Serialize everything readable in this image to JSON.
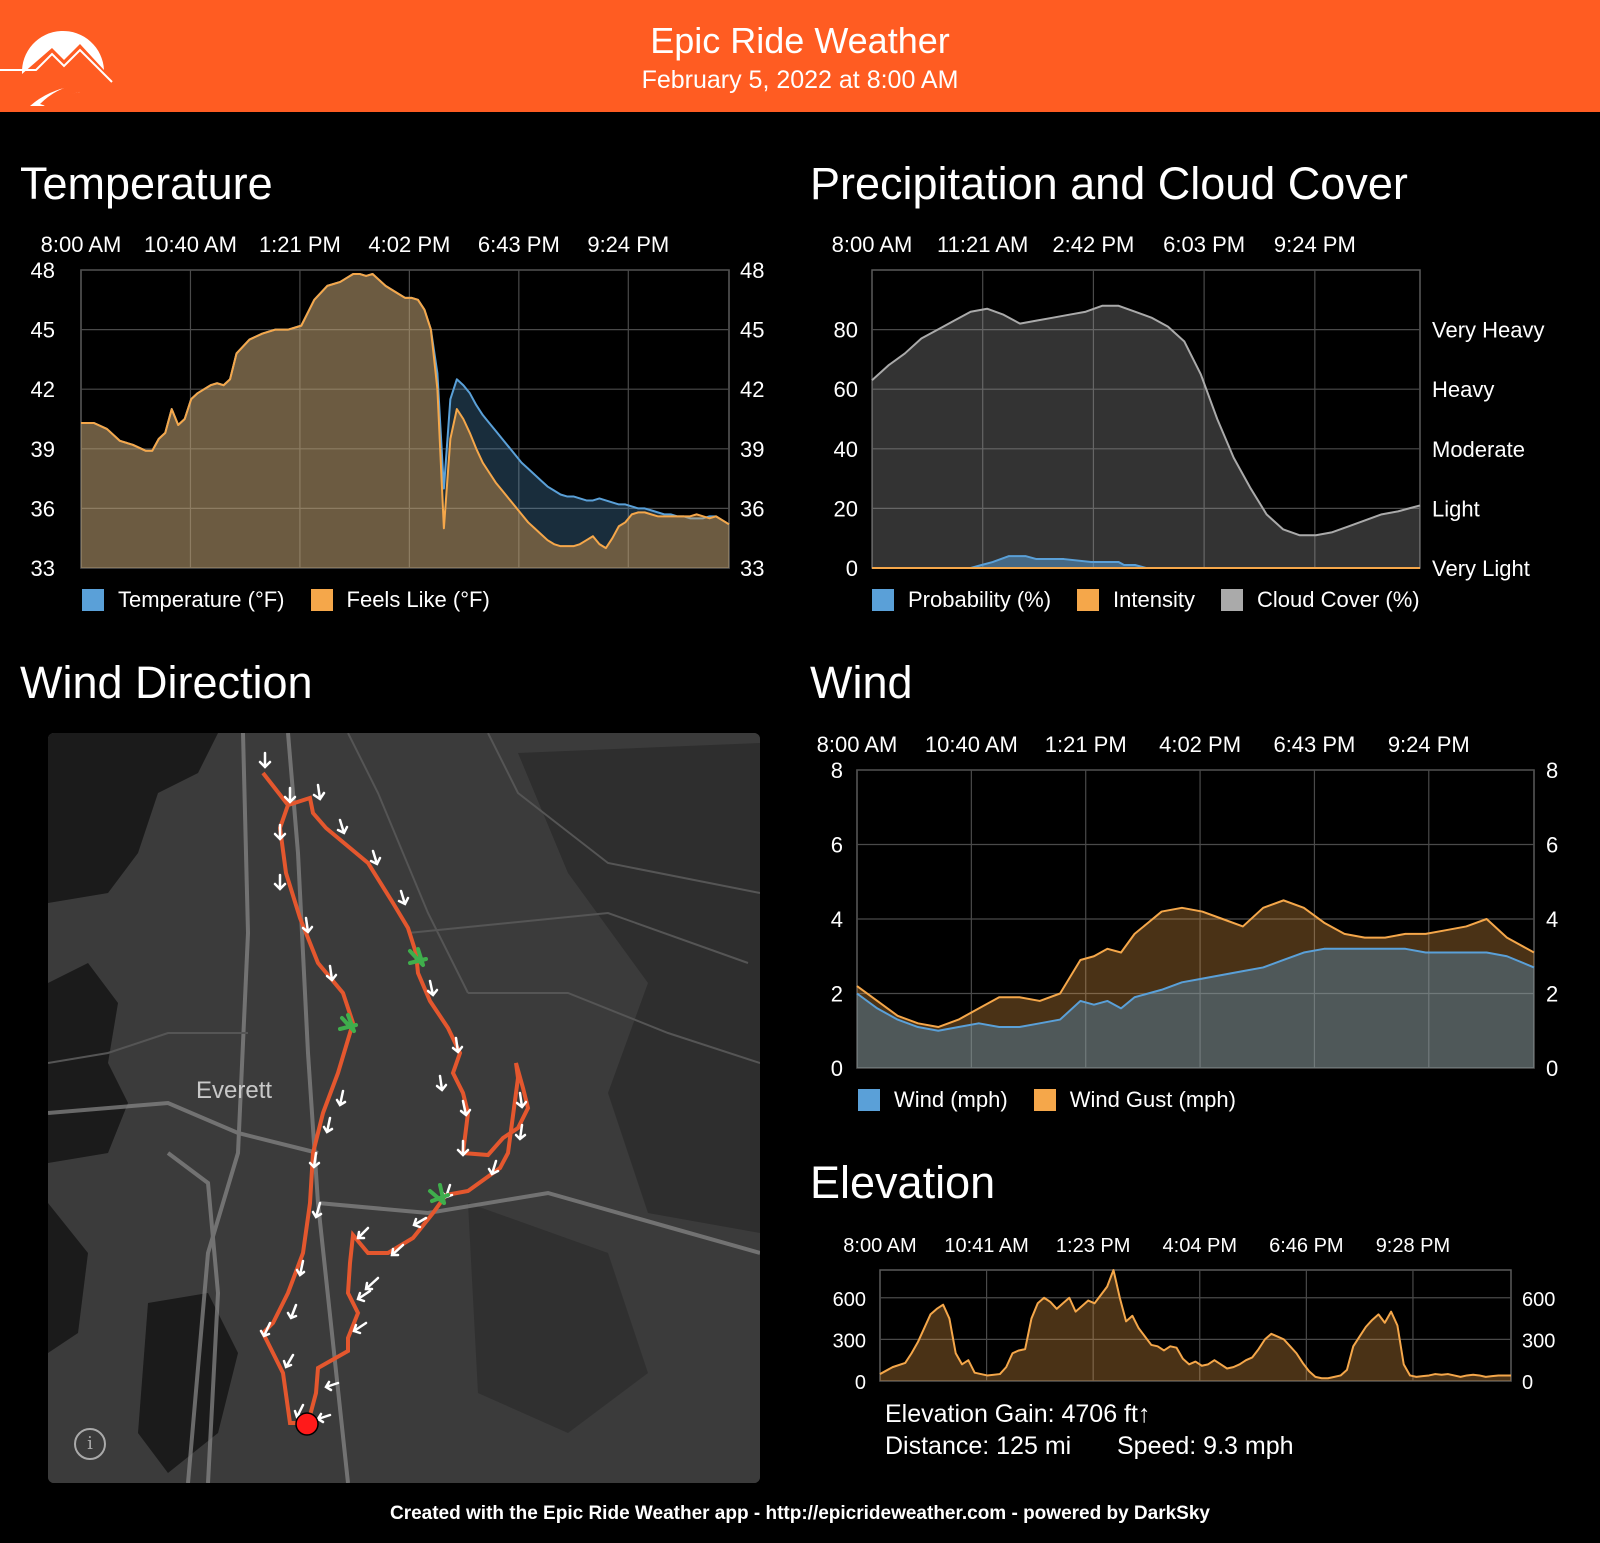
{
  "header": {
    "title": "Epic Ride Weather",
    "date": "February 5, 2022 at 8:00 AM",
    "brand_color": "#ff5c22"
  },
  "sections": {
    "temperature": "Temperature",
    "precip": "Precipitation and Cloud Cover",
    "wind_direction": "Wind Direction",
    "wind": "Wind",
    "elevation": "Elevation"
  },
  "legends": {
    "temperature": [
      {
        "label": "Temperature (°F)",
        "color": "#5aa0d8"
      },
      {
        "label": "Feels Like (°F)",
        "color": "#f5a74a"
      }
    ],
    "precip": [
      {
        "label": "Probability (%)",
        "color": "#5aa0d8"
      },
      {
        "label": "Intensity",
        "color": "#f5a74a"
      },
      {
        "label": "Cloud Cover (%)",
        "color": "#aaaaaa"
      }
    ],
    "wind": [
      {
        "label": "Wind (mph)",
        "color": "#5aa0d8"
      },
      {
        "label": "Wind Gust (mph)",
        "color": "#f5a74a"
      }
    ]
  },
  "map": {
    "city_label": "Everett",
    "info_icon": "info-icon"
  },
  "elevation_stats": {
    "gain": "Elevation Gain: 4706 ft↑",
    "distance": "Distance: 125 mi",
    "speed": "Speed: 9.3 mph"
  },
  "footer": "Created with the Epic Ride Weather app - http://epicrideweather.com - powered by DarkSky",
  "chart_data": [
    {
      "id": "temperature",
      "type": "area",
      "x_ticks": [
        "8:00 AM",
        "10:40 AM",
        "1:21 PM",
        "4:02 PM",
        "6:43 PM",
        "9:24 PM"
      ],
      "x_domain": [
        0,
        100
      ],
      "ylim": [
        33,
        48
      ],
      "y_ticks": [
        33,
        36,
        39,
        42,
        45,
        48
      ],
      "y_ticks_right": [
        "33",
        "36",
        "39",
        "42",
        "45",
        "48"
      ],
      "grid": true,
      "series": [
        {
          "name": "Temperature (°F)",
          "color": "#5aa0d8",
          "x": [
            0,
            2,
            4,
            6,
            8,
            10,
            11,
            12,
            13,
            14,
            15,
            16,
            17,
            18,
            19,
            20,
            21,
            22,
            23,
            24,
            26,
            28,
            29,
            30,
            31,
            32,
            33,
            34,
            36,
            38,
            40,
            41,
            42,
            43,
            44,
            45,
            46,
            47,
            48,
            49,
            50,
            51,
            52,
            53,
            54,
            55,
            56,
            57,
            58,
            59,
            60,
            61,
            62,
            63,
            64,
            65,
            66,
            67,
            68,
            69,
            70,
            71,
            72,
            73,
            74,
            75,
            76,
            77,
            78,
            79,
            80,
            81,
            82,
            83,
            84,
            85,
            86,
            87,
            88,
            89,
            90,
            91,
            92,
            93,
            94,
            95,
            96,
            97,
            98,
            99,
            100
          ],
          "values": [
            40.3,
            40.3,
            40.0,
            39.4,
            39.2,
            38.9,
            38.9,
            39.5,
            39.8,
            41.0,
            40.2,
            40.5,
            41.5,
            41.8,
            42.0,
            42.2,
            42.3,
            42.2,
            42.5,
            43.8,
            44.5,
            44.8,
            44.9,
            45.0,
            45.0,
            45.0,
            45.1,
            45.2,
            46.5,
            47.2,
            47.4,
            47.6,
            47.8,
            47.8,
            47.7,
            47.8,
            47.5,
            47.2,
            47.0,
            46.8,
            46.6,
            46.6,
            46.5,
            46.0,
            45.0,
            42.8,
            37.0,
            41.5,
            42.5,
            42.2,
            41.8,
            41.2,
            40.7,
            40.3,
            39.9,
            39.5,
            39.1,
            38.7,
            38.3,
            38.0,
            37.7,
            37.4,
            37.1,
            36.9,
            36.7,
            36.6,
            36.6,
            36.5,
            36.4,
            36.4,
            36.5,
            36.4,
            36.3,
            36.2,
            36.2,
            36.1,
            36.0,
            36.0,
            35.9,
            35.8,
            35.7,
            35.7,
            35.6,
            35.6,
            35.5,
            35.5,
            35.5,
            35.6,
            35.6,
            35.4,
            35.2
          ]
        },
        {
          "name": "Feels Like (°F)",
          "color": "#f5a74a",
          "x": [
            0,
            2,
            4,
            6,
            8,
            10,
            11,
            12,
            13,
            14,
            15,
            16,
            17,
            18,
            19,
            20,
            21,
            22,
            23,
            24,
            26,
            28,
            29,
            30,
            31,
            32,
            33,
            34,
            36,
            38,
            40,
            41,
            42,
            43,
            44,
            45,
            46,
            47,
            48,
            49,
            50,
            51,
            52,
            53,
            54,
            55,
            56,
            57,
            58,
            59,
            60,
            61,
            62,
            63,
            64,
            65,
            66,
            67,
            68,
            69,
            70,
            71,
            72,
            73,
            74,
            75,
            76,
            77,
            78,
            79,
            80,
            81,
            82,
            83,
            84,
            85,
            86,
            87,
            88,
            89,
            90,
            91,
            92,
            93,
            94,
            95,
            96,
            97,
            98,
            99,
            100
          ],
          "values": [
            40.3,
            40.3,
            40.0,
            39.4,
            39.2,
            38.9,
            38.9,
            39.5,
            39.8,
            41.0,
            40.2,
            40.5,
            41.5,
            41.8,
            42.0,
            42.2,
            42.3,
            42.2,
            42.5,
            43.8,
            44.5,
            44.8,
            44.9,
            45.0,
            45.0,
            45.0,
            45.1,
            45.2,
            46.5,
            47.2,
            47.4,
            47.6,
            47.8,
            47.8,
            47.7,
            47.8,
            47.5,
            47.2,
            47.0,
            46.8,
            46.6,
            46.6,
            46.5,
            46.0,
            45.0,
            42.0,
            35.0,
            39.5,
            41.0,
            40.5,
            39.8,
            39.0,
            38.3,
            37.8,
            37.3,
            36.9,
            36.5,
            36.1,
            35.7,
            35.3,
            35.0,
            34.7,
            34.4,
            34.2,
            34.1,
            34.1,
            34.1,
            34.2,
            34.4,
            34.6,
            34.2,
            34.0,
            34.5,
            35.1,
            35.3,
            35.7,
            35.8,
            35.8,
            35.7,
            35.6,
            35.6,
            35.6,
            35.6,
            35.6,
            35.6,
            35.7,
            35.6,
            35.5,
            35.6,
            35.4,
            35.2
          ]
        }
      ]
    },
    {
      "id": "precip",
      "type": "area",
      "x_ticks": [
        "8:00 AM",
        "11:21 AM",
        "2:42 PM",
        "6:03 PM",
        "9:24 PM"
      ],
      "x_domain": [
        0,
        100
      ],
      "ylim": [
        0,
        100
      ],
      "y_ticks": [
        0,
        20,
        40,
        60,
        80
      ],
      "y_ticks_right": [
        "Very Light",
        "Light",
        "Moderate",
        "Heavy",
        "Very Heavy"
      ],
      "grid": true,
      "series": [
        {
          "name": "Cloud Cover (%)",
          "color": "#aaaaaa",
          "x": [
            0,
            3,
            6,
            9,
            12,
            15,
            18,
            21,
            24,
            27,
            30,
            33,
            36,
            39,
            42,
            45,
            48,
            51,
            54,
            57,
            60,
            63,
            66,
            69,
            72,
            75,
            78,
            81,
            84,
            87,
            90,
            93,
            96,
            98,
            100
          ],
          "values": [
            63,
            68,
            72,
            77,
            80,
            83,
            86,
            87,
            85,
            82,
            83,
            84,
            85,
            86,
            88,
            88,
            86,
            84,
            81,
            76,
            65,
            50,
            37,
            27,
            18,
            13,
            11,
            11,
            12,
            14,
            16,
            18,
            19,
            20,
            21
          ]
        },
        {
          "name": "Probability (%)",
          "color": "#5aa0d8",
          "x": [
            0,
            18,
            20,
            22,
            25,
            28,
            30,
            35,
            40,
            45,
            46,
            48,
            50,
            52,
            100
          ],
          "values": [
            0,
            0,
            1,
            2,
            4,
            4,
            3,
            3,
            2,
            2,
            1,
            1,
            0,
            0,
            0
          ]
        },
        {
          "name": "Intensity",
          "color": "#f5a74a",
          "x": [
            0,
            100
          ],
          "values": [
            0,
            0
          ]
        }
      ]
    },
    {
      "id": "wind",
      "type": "area",
      "x_ticks": [
        "8:00 AM",
        "10:40 AM",
        "1:21 PM",
        "4:02 PM",
        "6:43 PM",
        "9:24 PM"
      ],
      "x_domain": [
        0,
        100
      ],
      "ylim": [
        0,
        8
      ],
      "y_ticks": [
        0,
        2,
        4,
        6,
        8
      ],
      "y_ticks_right": [
        "0",
        "2",
        "4",
        "6",
        "8"
      ],
      "grid": true,
      "series": [
        {
          "name": "Wind Gust (mph)",
          "color": "#f5a74a",
          "x": [
            0,
            3,
            6,
            9,
            12,
            15,
            18,
            21,
            24,
            27,
            30,
            33,
            35,
            37,
            39,
            41,
            43,
            45,
            48,
            51,
            54,
            57,
            60,
            63,
            66,
            69,
            72,
            75,
            78,
            81,
            84,
            87,
            90,
            93,
            96,
            100
          ],
          "values": [
            2.2,
            1.8,
            1.4,
            1.2,
            1.1,
            1.3,
            1.6,
            1.9,
            1.9,
            1.8,
            2.0,
            2.9,
            3.0,
            3.2,
            3.1,
            3.6,
            3.9,
            4.2,
            4.3,
            4.2,
            4.0,
            3.8,
            4.3,
            4.5,
            4.3,
            3.9,
            3.6,
            3.5,
            3.5,
            3.6,
            3.6,
            3.7,
            3.8,
            4.0,
            3.5,
            3.1
          ]
        },
        {
          "name": "Wind (mph)",
          "color": "#5aa0d8",
          "x": [
            0,
            3,
            6,
            9,
            12,
            15,
            18,
            21,
            24,
            27,
            30,
            33,
            35,
            37,
            39,
            41,
            43,
            45,
            48,
            51,
            54,
            57,
            60,
            63,
            66,
            69,
            72,
            75,
            78,
            81,
            84,
            87,
            90,
            93,
            96,
            100
          ],
          "values": [
            2.0,
            1.6,
            1.3,
            1.1,
            1.0,
            1.1,
            1.2,
            1.1,
            1.1,
            1.2,
            1.3,
            1.8,
            1.7,
            1.8,
            1.6,
            1.9,
            2.0,
            2.1,
            2.3,
            2.4,
            2.5,
            2.6,
            2.7,
            2.9,
            3.1,
            3.2,
            3.2,
            3.2,
            3.2,
            3.2,
            3.1,
            3.1,
            3.1,
            3.1,
            3.0,
            2.7
          ]
        }
      ]
    },
    {
      "id": "elevation",
      "type": "area",
      "x_ticks": [
        "8:00 AM",
        "10:41 AM",
        "1:23 PM",
        "4:04 PM",
        "6:46 PM",
        "9:28 PM"
      ],
      "x_domain": [
        0,
        100
      ],
      "ylim": [
        0,
        800
      ],
      "y_ticks": [
        0,
        300,
        600
      ],
      "y_ticks_right": [
        "0",
        "300",
        "600"
      ],
      "grid": true,
      "series": [
        {
          "name": "Elevation (ft)",
          "color": "#f5a74a",
          "x": [
            0,
            2,
            4,
            5,
            6,
            7,
            8,
            9,
            10,
            11,
            12,
            13,
            14,
            15,
            17,
            19,
            20,
            21,
            22,
            23,
            24,
            25,
            26,
            27,
            28,
            29,
            30,
            31,
            32,
            33,
            34,
            35,
            36,
            37,
            38,
            39,
            40,
            41,
            42,
            43,
            44,
            45,
            46,
            47,
            48,
            49,
            50,
            51,
            52,
            53,
            54,
            55,
            56,
            57,
            58,
            59,
            60,
            61,
            62,
            63,
            64,
            65,
            66,
            67,
            68,
            69,
            70,
            71,
            72,
            73,
            74,
            75,
            76,
            77,
            78,
            79,
            80,
            81,
            82,
            83,
            84,
            85,
            86,
            87,
            88,
            89,
            90,
            91,
            92,
            93,
            94,
            95,
            96,
            97,
            98,
            99,
            100
          ],
          "values": [
            50,
            100,
            130,
            200,
            280,
            380,
            480,
            520,
            550,
            450,
            200,
            120,
            150,
            60,
            40,
            50,
            100,
            200,
            220,
            230,
            450,
            560,
            600,
            570,
            520,
            560,
            600,
            500,
            540,
            580,
            560,
            620,
            680,
            800,
            600,
            430,
            470,
            380,
            320,
            260,
            250,
            220,
            250,
            240,
            160,
            120,
            140,
            110,
            120,
            150,
            120,
            90,
            100,
            120,
            150,
            170,
            230,
            300,
            340,
            320,
            300,
            250,
            200,
            130,
            70,
            30,
            20,
            20,
            30,
            40,
            80,
            250,
            320,
            390,
            440,
            480,
            420,
            500,
            400,
            120,
            40,
            30,
            35,
            40,
            50,
            45,
            50,
            40,
            30,
            40,
            45,
            40,
            30,
            35,
            40,
            40,
            40
          ]
        }
      ]
    }
  ]
}
